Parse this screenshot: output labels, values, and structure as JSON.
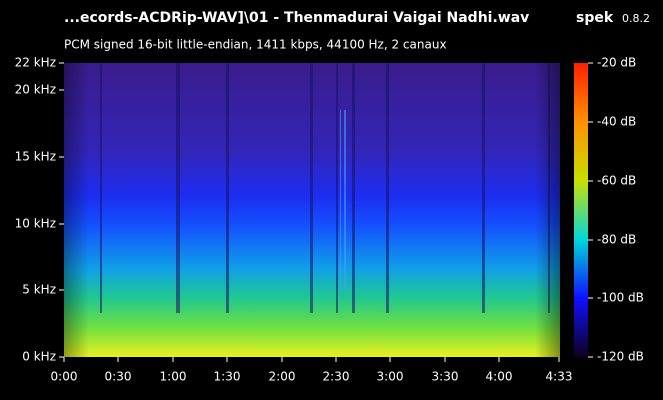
{
  "header": {
    "title": "...ecords-ACDRip-WAV]\\01 - Thenmadurai Vaigai Nadhi.wav",
    "app": "spek",
    "version": "0.8.2",
    "subtitle": "PCM signed 16-bit little-endian, 1411 kbps, 44100 Hz, 2 canaux"
  },
  "frequency_axis": [
    "22 kHz",
    "20 kHz",
    "15 kHz",
    "10 kHz",
    "5 kHz",
    "0 kHz"
  ],
  "time_axis": [
    "0:00",
    "0:30",
    "1:00",
    "1:30",
    "2:00",
    "2:30",
    "3:00",
    "3:30",
    "4:00",
    "4:33"
  ],
  "level_scale": [
    "-20 dB",
    "-40 dB",
    "-60 dB",
    "-80 dB",
    "-100 dB",
    "-120 dB"
  ]
}
